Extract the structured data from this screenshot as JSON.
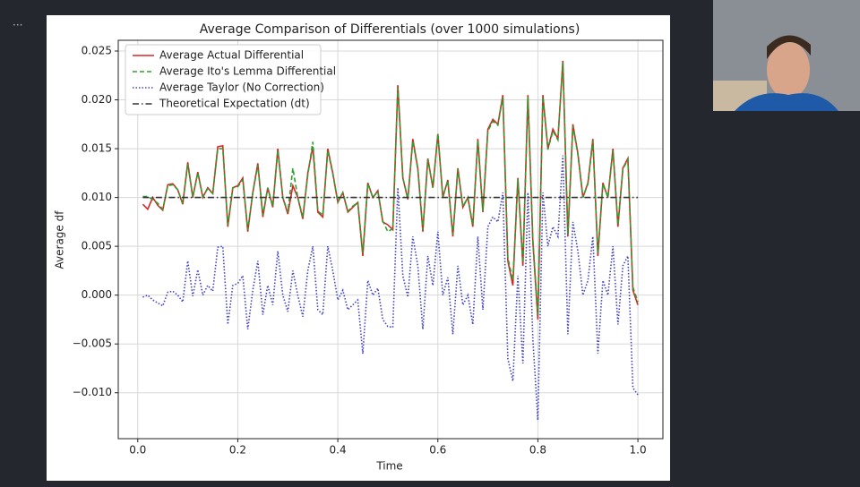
{
  "screen": {
    "menu_dots": "..."
  },
  "chart_data": {
    "type": "line",
    "title": "Average Comparison of Differentials (over 1000 simulations)",
    "xlabel": "Time",
    "ylabel": "Average df",
    "x": [
      0.01,
      0.02,
      0.03,
      0.04,
      0.05,
      0.06,
      0.07,
      0.08,
      0.09,
      0.1,
      0.11,
      0.12,
      0.13,
      0.14,
      0.15,
      0.16,
      0.17,
      0.18,
      0.19,
      0.2,
      0.21,
      0.22,
      0.23,
      0.24,
      0.25,
      0.26,
      0.27,
      0.28,
      0.29,
      0.3,
      0.31,
      0.32,
      0.33,
      0.34,
      0.35,
      0.36,
      0.37,
      0.38,
      0.39,
      0.4,
      0.41,
      0.42,
      0.43,
      0.44,
      0.45,
      0.46,
      0.47,
      0.48,
      0.49,
      0.5,
      0.51,
      0.52,
      0.53,
      0.54,
      0.55,
      0.56,
      0.57,
      0.58,
      0.59,
      0.6,
      0.61,
      0.62,
      0.63,
      0.64,
      0.65,
      0.66,
      0.67,
      0.68,
      0.69,
      0.7,
      0.71,
      0.72,
      0.73,
      0.74,
      0.75,
      0.76,
      0.77,
      0.78,
      0.79,
      0.8,
      0.81,
      0.82,
      0.83,
      0.84,
      0.85,
      0.86,
      0.87,
      0.88,
      0.89,
      0.9,
      0.91,
      0.92,
      0.93,
      0.94,
      0.95,
      0.96,
      0.97,
      0.98,
      0.99,
      1.0
    ],
    "series": [
      {
        "name": "Average Actual Differential",
        "color": "#d62728",
        "linestyle": "solid",
        "values": [
          0.0093,
          0.0088,
          0.01,
          0.0092,
          0.0087,
          0.0113,
          0.0114,
          0.0108,
          0.0093,
          0.0136,
          0.01,
          0.0126,
          0.01,
          0.011,
          0.0104,
          0.0152,
          0.0153,
          0.007,
          0.011,
          0.0112,
          0.012,
          0.0065,
          0.0105,
          0.0135,
          0.008,
          0.011,
          0.009,
          0.015,
          0.01,
          0.0083,
          0.0112,
          0.01,
          0.0078,
          0.0125,
          0.0152,
          0.0085,
          0.008,
          0.015,
          0.0125,
          0.0095,
          0.0105,
          0.0085,
          0.009,
          0.0095,
          0.004,
          0.0115,
          0.01,
          0.0107,
          0.0075,
          0.0072,
          0.0067,
          0.0215,
          0.012,
          0.0098,
          0.016,
          0.013,
          0.0065,
          0.014,
          0.011,
          0.0165,
          0.01,
          0.0118,
          0.006,
          0.013,
          0.009,
          0.01,
          0.007,
          0.016,
          0.0085,
          0.017,
          0.018,
          0.0175,
          0.0205,
          0.0035,
          0.001,
          0.012,
          0.003,
          0.0205,
          0.0055,
          -0.0025,
          0.0205,
          0.015,
          0.017,
          0.016,
          0.024,
          0.006,
          0.0175,
          0.0145,
          0.01,
          0.0115,
          0.016,
          0.004,
          0.0115,
          0.01,
          0.015,
          0.007,
          0.013,
          0.014,
          0.0005,
          -0.001
        ]
      },
      {
        "name": "Average Ito's Lemma Differential",
        "color": "#2ca02c",
        "linestyle": "dashed",
        "values": [
          0.0101,
          0.0101,
          0.0098,
          0.0094,
          0.0088,
          0.0112,
          0.0113,
          0.0108,
          0.0094,
          0.0134,
          0.0101,
          0.0125,
          0.0101,
          0.0109,
          0.0104,
          0.015,
          0.015,
          0.0072,
          0.011,
          0.0111,
          0.0118,
          0.0067,
          0.0105,
          0.0133,
          0.0082,
          0.011,
          0.0091,
          0.0148,
          0.01,
          0.0085,
          0.013,
          0.01,
          0.008,
          0.0123,
          0.0157,
          0.0086,
          0.0082,
          0.0148,
          0.0124,
          0.0096,
          0.0105,
          0.0086,
          0.0091,
          0.0095,
          0.0043,
          0.0114,
          0.01,
          0.0106,
          0.0076,
          0.0065,
          0.0068,
          0.0212,
          0.012,
          0.0099,
          0.0158,
          0.0129,
          0.0067,
          0.0139,
          0.011,
          0.0165,
          0.0101,
          0.0117,
          0.0062,
          0.0129,
          0.0091,
          0.01,
          0.0072,
          0.0158,
          0.0086,
          0.0168,
          0.0178,
          0.0174,
          0.0203,
          0.0038,
          0.0015,
          0.0119,
          0.0033,
          0.0203,
          0.0057,
          -0.002,
          0.0203,
          0.0149,
          0.0168,
          0.0159,
          0.0238,
          0.0062,
          0.0173,
          0.0144,
          0.01,
          0.0114,
          0.0158,
          0.0043,
          0.0114,
          0.01,
          0.0148,
          0.0072,
          0.0129,
          0.0139,
          0.0008,
          -0.0007
        ]
      },
      {
        "name": "Average Taylor (No Correction)",
        "color": "#4040c8",
        "linestyle": "dotted",
        "values": [
          -0.0002,
          0.0,
          -0.0005,
          -0.0008,
          -0.0011,
          0.0003,
          0.0004,
          0.0,
          -0.0007,
          0.0035,
          -0.0001,
          0.0026,
          0.0,
          0.001,
          0.0004,
          0.0049,
          0.005,
          -0.003,
          0.001,
          0.0012,
          0.002,
          -0.0035,
          0.0005,
          0.0035,
          -0.002,
          0.001,
          -0.001,
          0.0045,
          0.0,
          -0.0017,
          0.0025,
          0.0,
          -0.0022,
          0.0025,
          0.005,
          -0.0015,
          -0.002,
          0.005,
          0.0025,
          -0.0005,
          0.0005,
          -0.0015,
          -0.001,
          -0.0005,
          -0.006,
          0.0015,
          0.0,
          0.0007,
          -0.0025,
          -0.0032,
          -0.0033,
          0.011,
          0.002,
          -0.0002,
          0.006,
          0.003,
          -0.0035,
          0.004,
          0.001,
          0.0065,
          0.0,
          0.0018,
          -0.004,
          0.003,
          -0.001,
          0.0,
          -0.003,
          0.006,
          -0.0015,
          0.007,
          0.008,
          0.0075,
          0.0105,
          -0.0065,
          -0.0088,
          0.002,
          -0.007,
          0.0105,
          -0.0045,
          -0.0128,
          0.0105,
          0.005,
          0.007,
          0.006,
          0.0143,
          -0.004,
          0.0075,
          0.0045,
          0.0,
          0.0015,
          0.006,
          -0.006,
          0.0015,
          0.0,
          0.005,
          -0.003,
          0.003,
          0.004,
          -0.0095,
          -0.0102
        ]
      },
      {
        "name": "Theoretical Expectation (dt)",
        "color": "#333333",
        "linestyle": "dashdot",
        "values": [
          0.01,
          0.01,
          0.01,
          0.01,
          0.01,
          0.01,
          0.01,
          0.01,
          0.01,
          0.01,
          0.01,
          0.01,
          0.01,
          0.01,
          0.01,
          0.01,
          0.01,
          0.01,
          0.01,
          0.01,
          0.01,
          0.01,
          0.01,
          0.01,
          0.01,
          0.01,
          0.01,
          0.01,
          0.01,
          0.01,
          0.01,
          0.01,
          0.01,
          0.01,
          0.01,
          0.01,
          0.01,
          0.01,
          0.01,
          0.01,
          0.01,
          0.01,
          0.01,
          0.01,
          0.01,
          0.01,
          0.01,
          0.01,
          0.01,
          0.01,
          0.01,
          0.01,
          0.01,
          0.01,
          0.01,
          0.01,
          0.01,
          0.01,
          0.01,
          0.01,
          0.01,
          0.01,
          0.01,
          0.01,
          0.01,
          0.01,
          0.01,
          0.01,
          0.01,
          0.01,
          0.01,
          0.01,
          0.01,
          0.01,
          0.01,
          0.01,
          0.01,
          0.01,
          0.01,
          0.01,
          0.01,
          0.01,
          0.01,
          0.01,
          0.01,
          0.01,
          0.01,
          0.01,
          0.01,
          0.01,
          0.01,
          0.01,
          0.01,
          0.01,
          0.01,
          0.01,
          0.01,
          0.01,
          0.01,
          0.01
        ]
      }
    ],
    "xlim": [
      -0.039,
      1.05
    ],
    "ylim": [
      -0.0147,
      0.0261
    ],
    "xticks": [
      {
        "value": 0,
        "label": "0.0"
      },
      0.2,
      0.4,
      0.6,
      0.8,
      {
        "value": 1,
        "label": "1.0"
      }
    ],
    "yticks": [
      {
        "value": -0.01,
        "label": "−0.010"
      },
      {
        "value": -0.005,
        "label": "−0.005"
      },
      {
        "value": 0,
        "label": "0.000"
      },
      {
        "value": 0.005,
        "label": "0.005"
      },
      {
        "value": 0.01,
        "label": "0.010"
      },
      {
        "value": 0.015,
        "label": "0.015"
      },
      {
        "value": 0.02,
        "label": "0.020"
      },
      {
        "value": 0.025,
        "label": "0.025"
      }
    ],
    "grid": true,
    "legend": "upper left"
  }
}
